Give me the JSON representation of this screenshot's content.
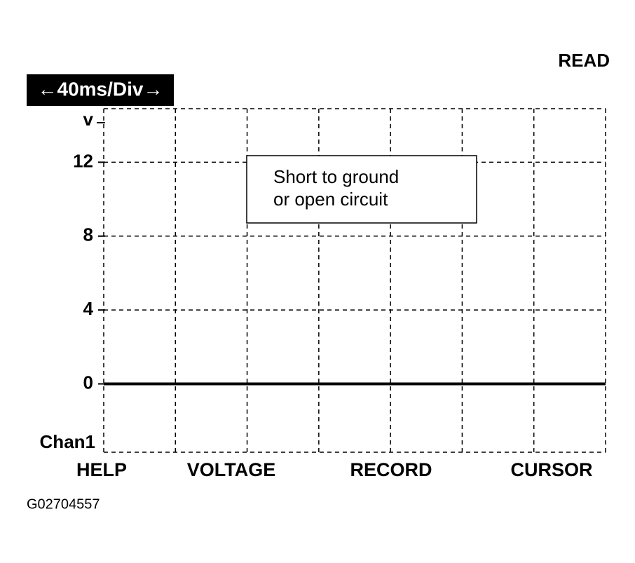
{
  "status": "READ",
  "timebase": "←40ms/Div→",
  "softkeys": [
    "HELP",
    "VOLTAGE",
    "RECORD",
    "CURSOR"
  ],
  "figure_id": "G02704557",
  "chart_data": {
    "type": "line",
    "y_label": "v",
    "channel": "Chan1",
    "annotation": [
      "Short to ground",
      "or open circuit"
    ],
    "x": [
      0,
      280
    ],
    "xlim": [
      0,
      280
    ],
    "xticks": [
      0,
      40,
      80,
      120,
      160,
      200,
      240,
      280
    ],
    "series": [
      {
        "name": "Chan1",
        "color": "#000000",
        "values": [
          0,
          0
        ]
      }
    ],
    "ylim": [
      -3.7,
      14.9
    ],
    "yticks": [
      0,
      4,
      8,
      12
    ],
    "grid": true
  }
}
